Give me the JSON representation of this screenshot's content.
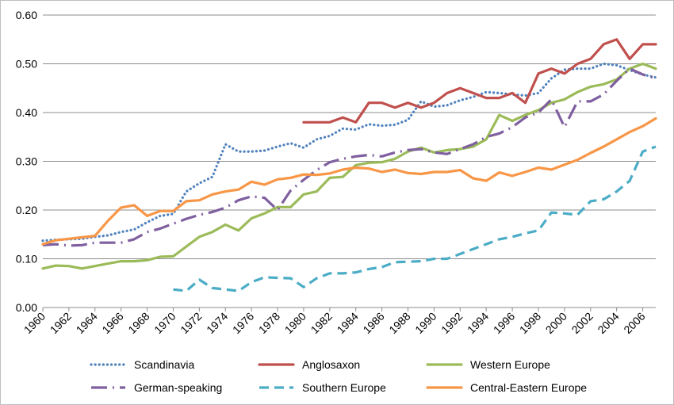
{
  "chart_data": {
    "type": "line",
    "title": "",
    "xlabel": "",
    "ylabel": "",
    "xlim": [
      1960,
      2007
    ],
    "ylim": [
      0,
      0.6
    ],
    "grid": "horizontal",
    "legend_position": "bottom",
    "x_ticks": [
      "1960",
      "1962",
      "1964",
      "1966",
      "1968",
      "1970",
      "1972",
      "1974",
      "1976",
      "1978",
      "1980",
      "1982",
      "1984",
      "1986",
      "1988",
      "1990",
      "1992",
      "1994",
      "1996",
      "1998",
      "2000",
      "2002",
      "2004",
      "2006"
    ],
    "y_ticks": [
      "0.00",
      "0.10",
      "0.20",
      "0.30",
      "0.40",
      "0.50",
      "0.60"
    ],
    "series": [
      {
        "name": "Scandinavia",
        "color": "#4f81bd",
        "style": "dotted",
        "points": [
          [
            1960,
            0.137
          ],
          [
            1961,
            0.139
          ],
          [
            1962,
            0.14
          ],
          [
            1963,
            0.141
          ],
          [
            1964,
            0.145
          ],
          [
            1965,
            0.148
          ],
          [
            1966,
            0.155
          ],
          [
            1967,
            0.16
          ],
          [
            1968,
            0.175
          ],
          [
            1969,
            0.188
          ],
          [
            1970,
            0.192
          ],
          [
            1971,
            0.238
          ],
          [
            1972,
            0.255
          ],
          [
            1973,
            0.268
          ],
          [
            1974,
            0.335
          ],
          [
            1975,
            0.32
          ],
          [
            1976,
            0.32
          ],
          [
            1977,
            0.322
          ],
          [
            1978,
            0.33
          ],
          [
            1979,
            0.337
          ],
          [
            1980,
            0.328
          ],
          [
            1981,
            0.345
          ],
          [
            1982,
            0.352
          ],
          [
            1983,
            0.367
          ],
          [
            1984,
            0.365
          ],
          [
            1985,
            0.376
          ],
          [
            1986,
            0.373
          ],
          [
            1987,
            0.375
          ],
          [
            1988,
            0.385
          ],
          [
            1989,
            0.423
          ],
          [
            1990,
            0.412
          ],
          [
            1991,
            0.415
          ],
          [
            1992,
            0.425
          ],
          [
            1993,
            0.432
          ],
          [
            1994,
            0.442
          ],
          [
            1995,
            0.44
          ],
          [
            1996,
            0.437
          ],
          [
            1997,
            0.435
          ],
          [
            1998,
            0.44
          ],
          [
            1999,
            0.47
          ],
          [
            2000,
            0.488
          ],
          [
            2001,
            0.49
          ],
          [
            2002,
            0.49
          ],
          [
            2003,
            0.5
          ],
          [
            2004,
            0.497
          ],
          [
            2005,
            0.487
          ],
          [
            2006,
            0.478
          ],
          [
            2007,
            0.472
          ]
        ]
      },
      {
        "name": "Anglosaxon",
        "color": "#c0504d",
        "style": "solid",
        "points": [
          [
            1980,
            0.38
          ],
          [
            1981,
            0.38
          ],
          [
            1982,
            0.38
          ],
          [
            1983,
            0.39
          ],
          [
            1984,
            0.38
          ],
          [
            1985,
            0.42
          ],
          [
            1986,
            0.42
          ],
          [
            1987,
            0.41
          ],
          [
            1988,
            0.42
          ],
          [
            1989,
            0.41
          ],
          [
            1990,
            0.42
          ],
          [
            1991,
            0.44
          ],
          [
            1992,
            0.45
          ],
          [
            1993,
            0.44
          ],
          [
            1994,
            0.43
          ],
          [
            1995,
            0.43
          ],
          [
            1996,
            0.44
          ],
          [
            1997,
            0.42
          ],
          [
            1998,
            0.48
          ],
          [
            1999,
            0.49
          ],
          [
            2000,
            0.48
          ],
          [
            2001,
            0.5
          ],
          [
            2002,
            0.51
          ],
          [
            2003,
            0.54
          ],
          [
            2004,
            0.55
          ],
          [
            2005,
            0.51
          ],
          [
            2006,
            0.54
          ],
          [
            2007,
            0.54
          ]
        ]
      },
      {
        "name": "Western Europe",
        "color": "#9bbb59",
        "style": "solid",
        "points": [
          [
            1960,
            0.08
          ],
          [
            1961,
            0.086
          ],
          [
            1962,
            0.085
          ],
          [
            1963,
            0.08
          ],
          [
            1964,
            0.085
          ],
          [
            1965,
            0.09
          ],
          [
            1966,
            0.095
          ],
          [
            1967,
            0.095
          ],
          [
            1968,
            0.097
          ],
          [
            1969,
            0.104
          ],
          [
            1970,
            0.105
          ],
          [
            1971,
            0.125
          ],
          [
            1972,
            0.145
          ],
          [
            1973,
            0.155
          ],
          [
            1974,
            0.17
          ],
          [
            1975,
            0.158
          ],
          [
            1976,
            0.183
          ],
          [
            1977,
            0.193
          ],
          [
            1978,
            0.206
          ],
          [
            1979,
            0.206
          ],
          [
            1980,
            0.232
          ],
          [
            1981,
            0.238
          ],
          [
            1982,
            0.266
          ],
          [
            1983,
            0.268
          ],
          [
            1984,
            0.292
          ],
          [
            1985,
            0.297
          ],
          [
            1986,
            0.298
          ],
          [
            1987,
            0.305
          ],
          [
            1988,
            0.32
          ],
          [
            1989,
            0.328
          ],
          [
            1990,
            0.318
          ],
          [
            1991,
            0.323
          ],
          [
            1992,
            0.325
          ],
          [
            1993,
            0.33
          ],
          [
            1994,
            0.345
          ],
          [
            1995,
            0.395
          ],
          [
            1996,
            0.383
          ],
          [
            1997,
            0.395
          ],
          [
            1998,
            0.405
          ],
          [
            1999,
            0.42
          ],
          [
            2000,
            0.427
          ],
          [
            2001,
            0.442
          ],
          [
            2002,
            0.453
          ],
          [
            2003,
            0.458
          ],
          [
            2004,
            0.468
          ],
          [
            2005,
            0.49
          ],
          [
            2006,
            0.5
          ],
          [
            2007,
            0.49
          ]
        ]
      },
      {
        "name": "German-speaking",
        "color": "#7f5f9f",
        "style": "dash-dot",
        "points": [
          [
            1960,
            0.128
          ],
          [
            1961,
            0.13
          ],
          [
            1962,
            0.127
          ],
          [
            1963,
            0.128
          ],
          [
            1964,
            0.133
          ],
          [
            1965,
            0.133
          ],
          [
            1966,
            0.133
          ],
          [
            1967,
            0.14
          ],
          [
            1968,
            0.155
          ],
          [
            1969,
            0.162
          ],
          [
            1970,
            0.172
          ],
          [
            1971,
            0.182
          ],
          [
            1972,
            0.19
          ],
          [
            1973,
            0.196
          ],
          [
            1974,
            0.205
          ],
          [
            1975,
            0.22
          ],
          [
            1976,
            0.228
          ],
          [
            1977,
            0.225
          ],
          [
            1978,
            0.2
          ],
          [
            1979,
            0.24
          ],
          [
            1980,
            0.262
          ],
          [
            1981,
            0.282
          ],
          [
            1982,
            0.298
          ],
          [
            1983,
            0.305
          ],
          [
            1984,
            0.31
          ],
          [
            1985,
            0.313
          ],
          [
            1986,
            0.31
          ],
          [
            1987,
            0.318
          ],
          [
            1988,
            0.323
          ],
          [
            1989,
            0.325
          ],
          [
            1990,
            0.318
          ],
          [
            1991,
            0.315
          ],
          [
            1992,
            0.325
          ],
          [
            1993,
            0.335
          ],
          [
            1994,
            0.35
          ],
          [
            1995,
            0.357
          ],
          [
            1996,
            0.37
          ],
          [
            1997,
            0.39
          ],
          [
            1998,
            0.4
          ],
          [
            1999,
            0.427
          ],
          [
            2000,
            0.37
          ],
          [
            2001,
            0.423
          ],
          [
            2002,
            0.423
          ],
          [
            2003,
            0.437
          ],
          [
            2004,
            0.465
          ],
          [
            2005,
            0.49
          ],
          [
            2006,
            0.478
          ],
          [
            2007,
            0.47
          ]
        ]
      },
      {
        "name": "Southern Europe",
        "color": "#4bacc6",
        "style": "dashed",
        "points": [
          [
            1970,
            0.037
          ],
          [
            1971,
            0.034
          ],
          [
            1972,
            0.057
          ],
          [
            1973,
            0.04
          ],
          [
            1974,
            0.037
          ],
          [
            1975,
            0.034
          ],
          [
            1976,
            0.052
          ],
          [
            1977,
            0.062
          ],
          [
            1978,
            0.061
          ],
          [
            1979,
            0.06
          ],
          [
            1980,
            0.042
          ],
          [
            1981,
            0.06
          ],
          [
            1982,
            0.07
          ],
          [
            1983,
            0.07
          ],
          [
            1984,
            0.072
          ],
          [
            1985,
            0.079
          ],
          [
            1986,
            0.083
          ],
          [
            1987,
            0.093
          ],
          [
            1988,
            0.094
          ],
          [
            1989,
            0.095
          ],
          [
            1990,
            0.1
          ],
          [
            1991,
            0.1
          ],
          [
            1992,
            0.11
          ],
          [
            1993,
            0.12
          ],
          [
            1994,
            0.13
          ],
          [
            1995,
            0.14
          ],
          [
            1996,
            0.145
          ],
          [
            1997,
            0.152
          ],
          [
            1998,
            0.158
          ],
          [
            1999,
            0.195
          ],
          [
            2000,
            0.193
          ],
          [
            2001,
            0.19
          ],
          [
            2002,
            0.218
          ],
          [
            2003,
            0.222
          ],
          [
            2004,
            0.238
          ],
          [
            2005,
            0.26
          ],
          [
            2006,
            0.32
          ],
          [
            2007,
            0.33
          ]
        ]
      },
      {
        "name": "Central-Eastern Europe",
        "color": "#f79646",
        "style": "solid",
        "points": [
          [
            1960,
            0.13
          ],
          [
            1961,
            0.138
          ],
          [
            1962,
            0.141
          ],
          [
            1963,
            0.144
          ],
          [
            1964,
            0.147
          ],
          [
            1965,
            0.178
          ],
          [
            1966,
            0.205
          ],
          [
            1967,
            0.21
          ],
          [
            1968,
            0.188
          ],
          [
            1969,
            0.198
          ],
          [
            1970,
            0.198
          ],
          [
            1971,
            0.218
          ],
          [
            1972,
            0.22
          ],
          [
            1973,
            0.232
          ],
          [
            1974,
            0.238
          ],
          [
            1975,
            0.242
          ],
          [
            1976,
            0.258
          ],
          [
            1977,
            0.252
          ],
          [
            1978,
            0.263
          ],
          [
            1979,
            0.266
          ],
          [
            1980,
            0.273
          ],
          [
            1981,
            0.272
          ],
          [
            1982,
            0.275
          ],
          [
            1983,
            0.283
          ],
          [
            1984,
            0.287
          ],
          [
            1985,
            0.285
          ],
          [
            1986,
            0.278
          ],
          [
            1987,
            0.283
          ],
          [
            1988,
            0.276
          ],
          [
            1989,
            0.274
          ],
          [
            1990,
            0.278
          ],
          [
            1991,
            0.278
          ],
          [
            1992,
            0.282
          ],
          [
            1993,
            0.265
          ],
          [
            1994,
            0.26
          ],
          [
            1995,
            0.277
          ],
          [
            1996,
            0.27
          ],
          [
            1997,
            0.278
          ],
          [
            1998,
            0.287
          ],
          [
            1999,
            0.283
          ],
          [
            2000,
            0.293
          ],
          [
            2001,
            0.303
          ],
          [
            2002,
            0.317
          ],
          [
            2003,
            0.33
          ],
          [
            2004,
            0.345
          ],
          [
            2005,
            0.36
          ],
          [
            2006,
            0.372
          ],
          [
            2007,
            0.388
          ]
        ]
      }
    ]
  }
}
